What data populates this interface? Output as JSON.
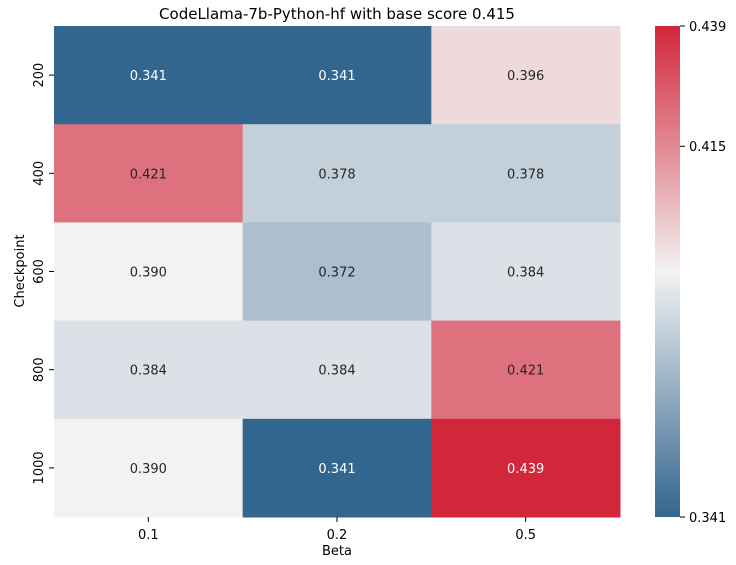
{
  "chart_data": {
    "type": "heatmap",
    "title": "CodeLlama-7b-Python-hf with base score 0.415",
    "xlabel": "Beta",
    "ylabel": "Checkpoint",
    "x_categories": [
      "0.1",
      "0.2",
      "0.5"
    ],
    "y_categories": [
      "200",
      "400",
      "600",
      "800",
      "1000"
    ],
    "values": [
      [
        0.341,
        0.341,
        0.396
      ],
      [
        0.421,
        0.378,
        0.378
      ],
      [
        0.39,
        0.372,
        0.384
      ],
      [
        0.384,
        0.384,
        0.421
      ],
      [
        0.39,
        0.341,
        0.439
      ]
    ],
    "cell_labels": [
      [
        "0.341",
        "0.341",
        "0.396"
      ],
      [
        "0.421",
        "0.378",
        "0.378"
      ],
      [
        "0.390",
        "0.372",
        "0.384"
      ],
      [
        "0.384",
        "0.384",
        "0.421"
      ],
      [
        "0.390",
        "0.341",
        "0.439"
      ]
    ],
    "colorbar": {
      "min": 0.341,
      "max": 0.439,
      "center": 0.39,
      "ticks": [
        0.341,
        0.415,
        0.439
      ],
      "tick_labels": [
        "0.341",
        "0.415",
        "0.439"
      ],
      "colormap": "diverging blue-white-red",
      "low_color": "#33668f",
      "mid_color": "#f2f2f2",
      "high_color": "#d2263a"
    },
    "grid": false
  }
}
